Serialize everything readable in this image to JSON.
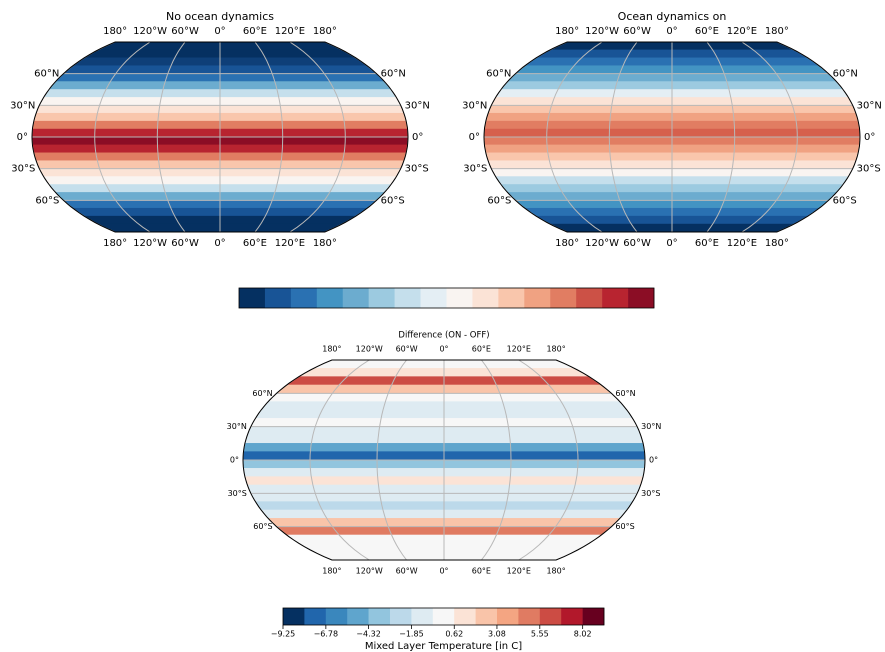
{
  "panels": [
    {
      "title": "No ocean dynamics",
      "lon_labels": [
        "180°",
        "120°W",
        "60°W",
        "0°",
        "60°E",
        "120°E",
        "180°"
      ],
      "lat_labels": [
        "60°N",
        "30°N",
        "0°",
        "30°S",
        "60°S"
      ],
      "band_colors": [
        "#053061",
        "#053061",
        "#0e3f78",
        "#185496",
        "#2a71b2",
        "#6caccf",
        "#c5dfec",
        "#f9f4f1",
        "#fbe3d6",
        "#f9c6ac",
        "#e17d62",
        "#b82430",
        "#8b0d25",
        "#b82430",
        "#e17d62",
        "#f9c6ac",
        "#fbe3d6",
        "#f9f4f1",
        "#c5dfec",
        "#6caccf",
        "#2a71b2",
        "#185496",
        "#053061",
        "#053061"
      ]
    },
    {
      "title": "Ocean dynamics on",
      "lon_labels": [
        "180°",
        "120°W",
        "60°W",
        "0°",
        "60°E",
        "120°E",
        "180°"
      ],
      "lat_labels": [
        "60°N",
        "30°N",
        "0°",
        "30°S",
        "60°S"
      ],
      "band_colors": [
        "#053061",
        "#185496",
        "#2a71b2",
        "#4394c3",
        "#6caccf",
        "#9ccae0",
        "#e4eef4",
        "#fbe3d6",
        "#f9c6ac",
        "#f0a282",
        "#e17d62",
        "#d6604d",
        "#e17d62",
        "#f0a282",
        "#f9c6ac",
        "#fbe3d6",
        "#f9f4f1",
        "#c5dfec",
        "#9ccae0",
        "#6caccf",
        "#4394c3",
        "#2a71b2",
        "#185496",
        "#053061"
      ]
    },
    {
      "title": "Difference (ON - OFF)",
      "lon_labels": [
        "180°",
        "120°W",
        "60°W",
        "0°",
        "60°E",
        "120°E",
        "180°"
      ],
      "lat_labels": [
        "60°N",
        "30°N",
        "0°",
        "30°S",
        "60°S"
      ],
      "band_colors": [
        "#f7f7f7",
        "#fbe3d6",
        "#cc4c44",
        "#f9c4a9",
        "#f7f7f7",
        "#deebf2",
        "#deebf2",
        "#f7f7f7",
        "#deebf2",
        "#deebf2",
        "#5fa5cd",
        "#2166ac",
        "#92c5de",
        "#deebf2",
        "#fbe3d6",
        "#deebf2",
        "#deebf2",
        "#bcd9ea",
        "#deebf2",
        "#f9c4a9",
        "#e07b62",
        "#f7f7f7",
        "#f7f7f7",
        "#f7f7f7"
      ]
    }
  ],
  "colorbar_top": {
    "colors": [
      "#053061",
      "#185496",
      "#2a71b2",
      "#4394c3",
      "#6caccf",
      "#9ccae0",
      "#c5dfec",
      "#e4eef4",
      "#f9f4f1",
      "#fbe3d6",
      "#f9c6ac",
      "#f0a282",
      "#e17d62",
      "#cc5146",
      "#b82430",
      "#8b0d25"
    ]
  },
  "colorbar_bottom": {
    "colors": [
      "#053061",
      "#2166ac",
      "#3a87bd",
      "#5fa5cd",
      "#92c5de",
      "#bcd9ea",
      "#deebf2",
      "#f7f7f7",
      "#fbe3d6",
      "#f9c4a9",
      "#f4a582",
      "#e07b62",
      "#cc4c44",
      "#b2182b",
      "#67001f"
    ],
    "lim": [
      -9.25,
      9.25
    ],
    "ticks": [
      {
        "value": -9.25,
        "label": "−9.25"
      },
      {
        "value": -6.78,
        "label": "−6.78"
      },
      {
        "value": -4.32,
        "label": "−4.32"
      },
      {
        "value": -1.85,
        "label": "−1.85"
      },
      0.62,
      3.08,
      5.55,
      8.02
    ],
    "label": "Mixed Layer Temperature [in C]"
  }
}
